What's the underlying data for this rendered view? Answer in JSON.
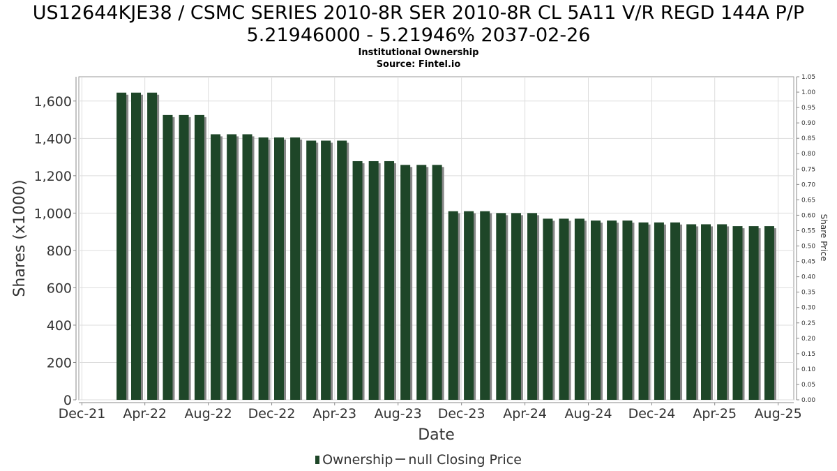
{
  "title_line1": "US12644KJE38 / CSMC SERIES 2010-8R SER 2010-8R CL 5A11 V/R REGD 144A P/P",
  "title_line2": "5.21946000 - 5.21946% 2037-02-26",
  "subtitle1": "Institutional Ownership",
  "subtitle2": "Source: Fintel.io",
  "legend": {
    "ownership": "Ownership",
    "price": "null Closing Price"
  },
  "colors": {
    "bar": "#1e4628",
    "bar_shadow": "#888888",
    "grid": "#dddddd"
  },
  "chart_data": {
    "type": "bar",
    "xlabel": "Date",
    "ylabel": "Shares (x1000)",
    "y2label": "Share Price",
    "ylim": [
      0,
      1730
    ],
    "y2lim": [
      0,
      1.05
    ],
    "xlim": [
      "2021-11-25",
      "2025-08-31"
    ],
    "yticks": [
      0,
      200,
      400,
      600,
      800,
      1000,
      1200,
      1400,
      1600
    ],
    "ytick_labels": [
      "0",
      "200",
      "400",
      "600",
      "800",
      "1,000",
      "1,200",
      "1,400",
      "1,600"
    ],
    "y2ticks": [
      "0.00",
      "0.05",
      "0.10",
      "0.15",
      "0.20",
      "0.25",
      "0.30",
      "0.35",
      "0.40",
      "0.45",
      "0.50",
      "0.55",
      "0.60",
      "0.65",
      "0.70",
      "0.75",
      "0.80",
      "0.85",
      "0.90",
      "0.95",
      "1.00",
      "1.05"
    ],
    "xticks": [
      {
        "date": "2021-12-01",
        "label": "Dec-21"
      },
      {
        "date": "2022-04-01",
        "label": "Apr-22"
      },
      {
        "date": "2022-08-01",
        "label": "Aug-22"
      },
      {
        "date": "2022-12-01",
        "label": "Dec-22"
      },
      {
        "date": "2023-04-01",
        "label": "Apr-23"
      },
      {
        "date": "2023-08-01",
        "label": "Aug-23"
      },
      {
        "date": "2023-12-01",
        "label": "Dec-23"
      },
      {
        "date": "2024-04-01",
        "label": "Apr-24"
      },
      {
        "date": "2024-08-01",
        "label": "Aug-24"
      },
      {
        "date": "2024-12-01",
        "label": "Dec-24"
      },
      {
        "date": "2025-04-01",
        "label": "Apr-25"
      },
      {
        "date": "2025-08-01",
        "label": "Aug-25"
      }
    ],
    "grid": true,
    "legend_position": "bottom",
    "series": [
      {
        "name": "Ownership",
        "x": [
          "2022-02-15",
          "2022-03-15",
          "2022-04-15",
          "2022-05-15",
          "2022-06-15",
          "2022-07-15",
          "2022-08-15",
          "2022-09-15",
          "2022-10-15",
          "2022-11-15",
          "2022-12-15",
          "2023-01-15",
          "2023-02-15",
          "2023-03-15",
          "2023-04-15",
          "2023-05-15",
          "2023-06-15",
          "2023-07-15",
          "2023-08-15",
          "2023-09-15",
          "2023-10-15",
          "2023-11-15",
          "2023-12-15",
          "2024-01-15",
          "2024-02-15",
          "2024-03-15",
          "2024-04-15",
          "2024-05-15",
          "2024-06-15",
          "2024-07-15",
          "2024-08-15",
          "2024-09-15",
          "2024-10-15",
          "2024-11-15",
          "2024-12-15",
          "2025-01-15",
          "2025-02-15",
          "2025-03-15",
          "2025-04-15",
          "2025-05-15",
          "2025-06-15",
          "2025-07-15"
        ],
        "values": [
          1645,
          1645,
          1645,
          1525,
          1525,
          1525,
          1422,
          1422,
          1422,
          1405,
          1405,
          1405,
          1388,
          1388,
          1388,
          1278,
          1278,
          1278,
          1258,
          1258,
          1258,
          1010,
          1010,
          1010,
          1000,
          1000,
          1000,
          970,
          970,
          970,
          960,
          960,
          960,
          950,
          950,
          950,
          940,
          940,
          940,
          930,
          930,
          930
        ]
      }
    ]
  }
}
